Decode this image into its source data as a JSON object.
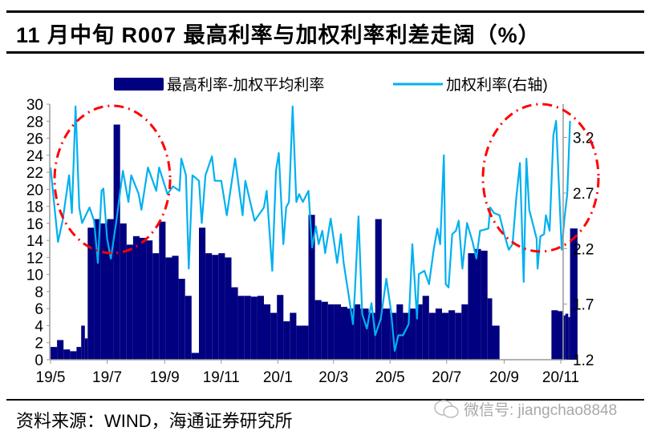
{
  "header": {
    "title": "11 月中旬 R007 最高利率与加权利率利差走阔（%）"
  },
  "footer": {
    "source": "资料来源：WIND，海通证券研究所",
    "watermark": "微信号: jiangchao8848",
    "watermark_icon": "wechat-icon"
  },
  "colors": {
    "bars": "#000080",
    "line": "#00B0F0",
    "annotation": "#FF0000"
  },
  "chart_data": {
    "type": "bar+line",
    "title": "11 月中旬 R007 最高利率与加权利率利差走阔（%）",
    "legend_position": "top",
    "grid": false,
    "left_axis": {
      "range": [
        0,
        30
      ],
      "ticks": [
        "0",
        "2",
        "4",
        "6",
        "8",
        "10",
        "12",
        "14",
        "16",
        "18",
        "20",
        "22",
        "24",
        "26",
        "28",
        "30"
      ]
    },
    "right_axis": {
      "range": [
        1.2,
        3.5
      ],
      "ticks": [
        "1.2",
        "1.7",
        "2.2",
        "2.7",
        "3.2"
      ]
    },
    "x_ticks": [
      "19/5",
      "19/7",
      "19/9",
      "19/11",
      "20/1",
      "20/3",
      "20/5",
      "20/7",
      "20/9",
      "20/11"
    ],
    "x_tick_dates": [
      "2019-05-01",
      "2019-07-01",
      "2019-09-01",
      "2019-11-01",
      "2020-01-01",
      "2020-03-01",
      "2020-05-01",
      "2020-07-01",
      "2020-09-01",
      "2020-11-01"
    ],
    "annotations": [
      "red dash-dot ellipse around 2019/6-2019/8",
      "red dash-dot ellipse around 2020/9-2020/11"
    ],
    "series": [
      {
        "name": "最高利率-加权平均利率",
        "type": "bar",
        "axis": "left",
        "points": [
          [
            "2019-05-01",
            1.5
          ],
          [
            "2019-05-08",
            2.3
          ],
          [
            "2019-05-15",
            1.2
          ],
          [
            "2019-05-22",
            1.0
          ],
          [
            "2019-05-29",
            1.5
          ],
          [
            "2019-06-03",
            4.0
          ],
          [
            "2019-06-07",
            2.5
          ],
          [
            "2019-06-10",
            15.5
          ],
          [
            "2019-06-17",
            16.5
          ],
          [
            "2019-06-24",
            16.0
          ],
          [
            "2019-07-01",
            16.5
          ],
          [
            "2019-07-08",
            27.6
          ],
          [
            "2019-07-15",
            16.0
          ],
          [
            "2019-07-22",
            13.5
          ],
          [
            "2019-07-29",
            14.5
          ],
          [
            "2019-08-05",
            14.3
          ],
          [
            "2019-08-12",
            14.0
          ],
          [
            "2019-08-19",
            12.5
          ],
          [
            "2019-08-26",
            16.2
          ],
          [
            "2019-09-02",
            12.0
          ],
          [
            "2019-09-09",
            12.2
          ],
          [
            "2019-09-16",
            9.5
          ],
          [
            "2019-09-23",
            7.5
          ],
          [
            "2019-09-30",
            0.8
          ],
          [
            "2019-10-08",
            15.5
          ],
          [
            "2019-10-15",
            12.5
          ],
          [
            "2019-10-22",
            12.3
          ],
          [
            "2019-10-29",
            12.5
          ],
          [
            "2019-11-05",
            12.0
          ],
          [
            "2019-11-12",
            8.5
          ],
          [
            "2019-11-19",
            7.5
          ],
          [
            "2019-11-26",
            7.5
          ],
          [
            "2019-12-03",
            7.4
          ],
          [
            "2019-12-10",
            7.5
          ],
          [
            "2019-12-17",
            6.5
          ],
          [
            "2019-12-24",
            5.5
          ],
          [
            "2019-12-31",
            7.6
          ],
          [
            "2020-01-07",
            4.5
          ],
          [
            "2020-01-14",
            5.5
          ],
          [
            "2020-01-21",
            4.0
          ],
          [
            "2020-02-03",
            17.0
          ],
          [
            "2020-02-10",
            7.0
          ],
          [
            "2020-02-17",
            6.8
          ],
          [
            "2020-02-24",
            6.5
          ],
          [
            "2020-03-02",
            6.5
          ],
          [
            "2020-03-09",
            6.2
          ],
          [
            "2020-03-16",
            6.0
          ],
          [
            "2020-03-23",
            6.5
          ],
          [
            "2020-03-30",
            6.0
          ],
          [
            "2020-04-08",
            5.5
          ],
          [
            "2020-04-15",
            16.5
          ],
          [
            "2020-04-22",
            6.0
          ],
          [
            "2020-05-01",
            5.5
          ],
          [
            "2020-05-08",
            6.5
          ],
          [
            "2020-05-15",
            5.5
          ],
          [
            "2020-05-22",
            6.0
          ],
          [
            "2020-05-29",
            6.5
          ],
          [
            "2020-06-05",
            7.5
          ],
          [
            "2020-06-12",
            5.5
          ],
          [
            "2020-06-19",
            6.0
          ],
          [
            "2020-06-26",
            5.5
          ],
          [
            "2020-07-03",
            5.8
          ],
          [
            "2020-07-10",
            5.5
          ],
          [
            "2020-07-17",
            6.5
          ],
          [
            "2020-07-24",
            12.5
          ],
          [
            "2020-07-31",
            13.0
          ],
          [
            "2020-08-07",
            12.8
          ],
          [
            "2020-08-14",
            7.2
          ],
          [
            "2020-08-19",
            4.0
          ],
          [
            "2020-10-22",
            5.8
          ],
          [
            "2020-10-29",
            5.7
          ],
          [
            "2020-11-03",
            5.2
          ],
          [
            "2020-11-06",
            5.4
          ],
          [
            "2020-11-09",
            5.0
          ],
          [
            "2020-11-11",
            15.4
          ]
        ]
      },
      {
        "name": "加权利率(右轴)",
        "type": "line",
        "axis": "right",
        "points": [
          [
            "2019-05-01",
            2.93
          ],
          [
            "2019-05-09",
            2.26
          ],
          [
            "2019-05-14",
            2.45
          ],
          [
            "2019-05-21",
            2.86
          ],
          [
            "2019-05-24",
            2.52
          ],
          [
            "2019-05-28",
            3.48
          ],
          [
            "2019-06-01",
            2.57
          ],
          [
            "2019-06-04",
            2.43
          ],
          [
            "2019-06-12",
            2.57
          ],
          [
            "2019-06-17",
            2.45
          ],
          [
            "2019-06-21",
            2.07
          ],
          [
            "2019-06-25",
            2.72
          ],
          [
            "2019-06-27",
            2.74
          ],
          [
            "2019-07-01",
            2.29
          ],
          [
            "2019-07-05",
            2.11
          ],
          [
            "2019-07-11",
            2.45
          ],
          [
            "2019-07-18",
            2.9
          ],
          [
            "2019-07-24",
            2.62
          ],
          [
            "2019-07-27",
            2.86
          ],
          [
            "2019-08-04",
            2.69
          ],
          [
            "2019-08-07",
            2.55
          ],
          [
            "2019-08-14",
            2.93
          ],
          [
            "2019-08-23",
            2.72
          ],
          [
            "2019-08-26",
            2.93
          ],
          [
            "2019-09-04",
            2.69
          ],
          [
            "2019-09-10",
            2.76
          ],
          [
            "2019-09-17",
            2.72
          ],
          [
            "2019-09-19",
            3.01
          ],
          [
            "2019-09-24",
            2.86
          ],
          [
            "2019-09-27",
            2.02
          ],
          [
            "2019-10-01",
            2.86
          ],
          [
            "2019-10-08",
            2.81
          ],
          [
            "2019-10-11",
            2.43
          ],
          [
            "2019-10-15",
            2.86
          ],
          [
            "2019-10-22",
            3.03
          ],
          [
            "2019-10-25",
            2.81
          ],
          [
            "2019-11-01",
            2.81
          ],
          [
            "2019-11-07",
            2.5
          ],
          [
            "2019-11-16",
            3.01
          ],
          [
            "2019-11-24",
            2.5
          ],
          [
            "2019-11-27",
            2.81
          ],
          [
            "2019-12-07",
            2.45
          ],
          [
            "2019-12-17",
            2.57
          ],
          [
            "2019-12-20",
            2.72
          ],
          [
            "2019-12-26",
            2.0
          ],
          [
            "2019-12-30",
            2.9
          ],
          [
            "2020-01-02",
            3.06
          ],
          [
            "2020-01-07",
            2.24
          ],
          [
            "2020-01-10",
            2.57
          ],
          [
            "2020-01-13",
            2.62
          ],
          [
            "2020-01-17",
            3.48
          ],
          [
            "2020-01-21",
            2.62
          ],
          [
            "2020-01-24",
            2.69
          ],
          [
            "2020-01-28",
            2.62
          ],
          [
            "2020-02-03",
            2.72
          ],
          [
            "2020-02-07",
            2.21
          ],
          [
            "2020-02-11",
            2.4
          ],
          [
            "2020-02-14",
            2.24
          ],
          [
            "2020-02-18",
            2.36
          ],
          [
            "2020-02-21",
            2.16
          ],
          [
            "2020-02-27",
            2.47
          ],
          [
            "2020-03-05",
            2.07
          ],
          [
            "2020-03-09",
            2.33
          ],
          [
            "2020-03-12",
            2.07
          ],
          [
            "2020-03-17",
            1.8
          ],
          [
            "2020-03-22",
            1.52
          ],
          [
            "2020-03-24",
            1.8
          ],
          [
            "2020-03-28",
            2.49
          ],
          [
            "2020-04-01",
            1.61
          ],
          [
            "2020-04-06",
            1.48
          ],
          [
            "2020-04-11",
            1.71
          ],
          [
            "2020-04-15",
            1.42
          ],
          [
            "2020-04-21",
            1.57
          ],
          [
            "2020-04-27",
            1.93
          ],
          [
            "2020-05-02",
            1.64
          ],
          [
            "2020-05-06",
            1.28
          ],
          [
            "2020-05-10",
            1.42
          ],
          [
            "2020-05-15",
            1.42
          ],
          [
            "2020-05-21",
            1.52
          ],
          [
            "2020-05-25",
            2.24
          ],
          [
            "2020-05-30",
            1.57
          ],
          [
            "2020-06-01",
            1.97
          ],
          [
            "2020-06-07",
            2.0
          ],
          [
            "2020-06-12",
            1.88
          ],
          [
            "2020-06-17",
            2.19
          ],
          [
            "2020-06-21",
            2.38
          ],
          [
            "2020-06-24",
            2.24
          ],
          [
            "2020-06-28",
            3.04
          ],
          [
            "2020-06-30",
            1.88
          ],
          [
            "2020-07-03",
            1.85
          ],
          [
            "2020-07-07",
            2.33
          ],
          [
            "2020-07-11",
            2.36
          ],
          [
            "2020-07-14",
            2.45
          ],
          [
            "2020-07-18",
            2.02
          ],
          [
            "2020-07-23",
            2.43
          ],
          [
            "2020-07-29",
            2.26
          ],
          [
            "2020-08-02",
            2.11
          ],
          [
            "2020-08-06",
            2.36
          ],
          [
            "2020-08-15",
            2.38
          ],
          [
            "2020-08-17",
            2.57
          ],
          [
            "2020-08-21",
            2.52
          ],
          [
            "2020-08-27",
            2.5
          ],
          [
            "2020-09-01",
            2.33
          ],
          [
            "2020-09-06",
            2.19
          ],
          [
            "2020-09-10",
            2.24
          ],
          [
            "2020-09-14",
            2.65
          ],
          [
            "2020-09-18",
            2.97
          ],
          [
            "2020-09-22",
            1.9
          ],
          [
            "2020-09-25",
            3.01
          ],
          [
            "2020-09-28",
            2.55
          ],
          [
            "2020-10-06",
            2.29
          ],
          [
            "2020-10-07",
            2.02
          ],
          [
            "2020-10-10",
            2.31
          ],
          [
            "2020-10-14",
            2.33
          ],
          [
            "2020-10-16",
            2.5
          ],
          [
            "2020-10-20",
            2.36
          ],
          [
            "2020-10-24",
            3.22
          ],
          [
            "2020-10-27",
            3.35
          ],
          [
            "2020-11-02",
            2.19
          ],
          [
            "2020-11-05",
            2.47
          ],
          [
            "2020-11-08",
            2.69
          ],
          [
            "2020-11-11",
            3.35
          ]
        ]
      }
    ]
  }
}
